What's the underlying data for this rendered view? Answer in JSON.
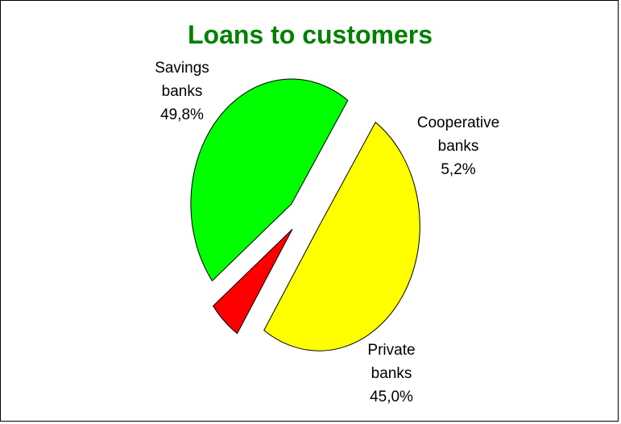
{
  "chart_data": {
    "type": "pie",
    "title": "Loans to customers",
    "title_color": "#008000",
    "slices": [
      {
        "lines": [
          "Savings",
          "banks",
          "49,8%"
        ],
        "value": 49.8,
        "color": "#FFFF00"
      },
      {
        "lines": [
          "Cooperative",
          "banks",
          "5,2%"
        ],
        "value": 5.2,
        "color": "#FF0000"
      },
      {
        "lines": [
          "Private",
          "banks",
          "45,0%"
        ],
        "value": 45.0,
        "color": "#00FF00"
      }
    ],
    "exploded": true,
    "legend": "none"
  }
}
